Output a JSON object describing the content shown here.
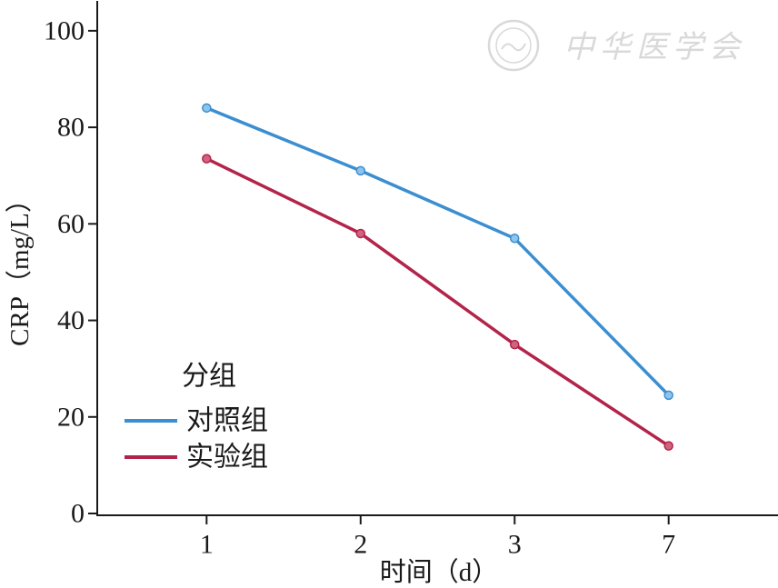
{
  "watermark": {
    "text": "中华医学会",
    "color": "#d9d9d9",
    "icon": "seal-icon"
  },
  "chart_data": {
    "type": "line",
    "categories": [
      "1",
      "2",
      "3",
      "7"
    ],
    "series": [
      {
        "name": "对照组",
        "color": "#3b8fd1",
        "marker_fill": "#8cc4ec",
        "values": [
          84,
          71,
          57,
          24.5
        ]
      },
      {
        "name": "实验组",
        "color": "#b3244a",
        "marker_fill": "#d2637f",
        "values": [
          73.5,
          58,
          35,
          14
        ]
      }
    ],
    "xlabel": "时间（d）",
    "ylabel": "CRP（mg/L）",
    "ylim": [
      0,
      106
    ],
    "yticks": [
      0,
      20,
      40,
      60,
      80,
      100
    ],
    "legend": {
      "title": "分组",
      "placement": "center-left"
    },
    "grid": false,
    "axis_color": "#1a1a1a"
  }
}
